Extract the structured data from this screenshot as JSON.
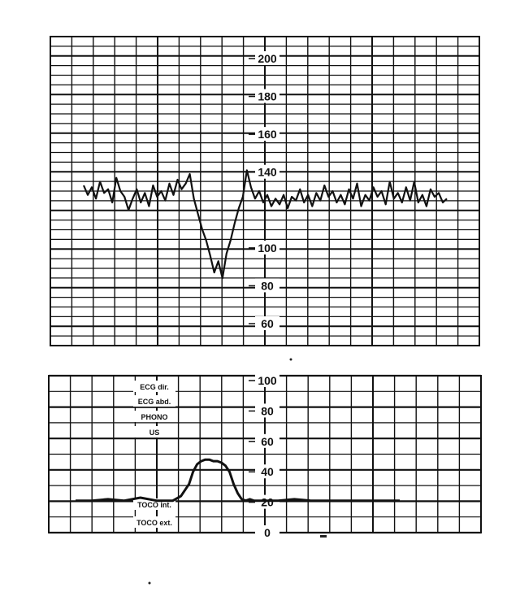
{
  "chart_data": [
    {
      "type": "line",
      "title": "",
      "ylim": [
        45,
        210
      ],
      "yticks": [
        {
          "value": 200,
          "label": "200"
        },
        {
          "value": 180,
          "label": "180"
        },
        {
          "value": 160,
          "label": "160"
        },
        {
          "value": 140,
          "label": "140"
        },
        {
          "value": 100,
          "label": "100"
        },
        {
          "value": 80,
          "label": "80"
        },
        {
          "value": 60,
          "label": "60"
        }
      ],
      "series": [
        {
          "x": [
            0,
            5,
            10,
            15,
            20,
            25,
            30,
            35,
            40,
            45,
            50,
            55,
            60,
            65,
            70,
            75,
            80,
            85,
            90,
            95,
            100,
            105,
            110,
            115,
            120,
            125,
            130,
            135,
            140,
            145,
            150,
            155,
            160,
            165,
            170,
            175,
            180,
            185,
            190,
            195,
            200,
            205,
            210,
            215,
            220,
            225,
            230,
            235,
            240,
            245,
            250,
            255,
            260,
            265,
            270,
            275,
            280,
            285,
            290,
            295,
            300,
            305,
            310,
            315,
            320,
            325,
            330,
            335,
            340,
            345,
            350,
            355,
            360,
            365,
            370,
            375,
            380,
            385,
            390,
            395,
            400,
            405,
            410,
            415,
            420,
            425,
            430,
            435,
            440,
            445
          ],
          "values": [
            133,
            128,
            132,
            126,
            135,
            129,
            131,
            124,
            137,
            130,
            127,
            120,
            126,
            131,
            124,
            129,
            122,
            133,
            127,
            130,
            125,
            134,
            128,
            136,
            131,
            134,
            139,
            126,
            118,
            110,
            104,
            96,
            87,
            93,
            84,
            97,
            104,
            113,
            121,
            127,
            141,
            132,
            126,
            130,
            124,
            128,
            122,
            126,
            123,
            128,
            121,
            127,
            125,
            131,
            124,
            128,
            122,
            129,
            125,
            133,
            127,
            130,
            124,
            128,
            123,
            131,
            126,
            134,
            122,
            128,
            125,
            132,
            127,
            130,
            123,
            135,
            126,
            129,
            124,
            132,
            125,
            135,
            124,
            128,
            122,
            131,
            127,
            129,
            124,
            126
          ]
        }
      ]
    },
    {
      "type": "line",
      "title": "",
      "ylim": [
        0,
        100
      ],
      "yticks": [
        {
          "value": 100,
          "label": "100"
        },
        {
          "value": 80,
          "label": "80"
        },
        {
          "value": 60,
          "label": "60"
        },
        {
          "value": 40,
          "label": "40"
        },
        {
          "value": 20,
          "label": "20"
        },
        {
          "value": 0,
          "label": "0"
        }
      ],
      "labels": [
        "ECG dir.",
        "ECG abd.",
        "PHONO",
        "US",
        "TOCO int.",
        "TOCO ext."
      ],
      "series": [
        {
          "x": [
            0,
            20,
            40,
            60,
            80,
            100,
            120,
            130,
            140,
            145,
            150,
            155,
            160,
            165,
            170,
            175,
            180,
            185,
            190,
            195,
            200,
            205,
            210,
            215,
            220,
            230,
            250,
            270,
            290,
            310,
            330,
            350,
            370,
            390,
            400
          ],
          "values": [
            21,
            21,
            22,
            21,
            23,
            21,
            21,
            24,
            32,
            40,
            45,
            47,
            48,
            48,
            47,
            47,
            46,
            44,
            40,
            32,
            26,
            22,
            21,
            22,
            21,
            21,
            21,
            22,
            21,
            21,
            21,
            21,
            21,
            21,
            21
          ]
        }
      ]
    }
  ]
}
